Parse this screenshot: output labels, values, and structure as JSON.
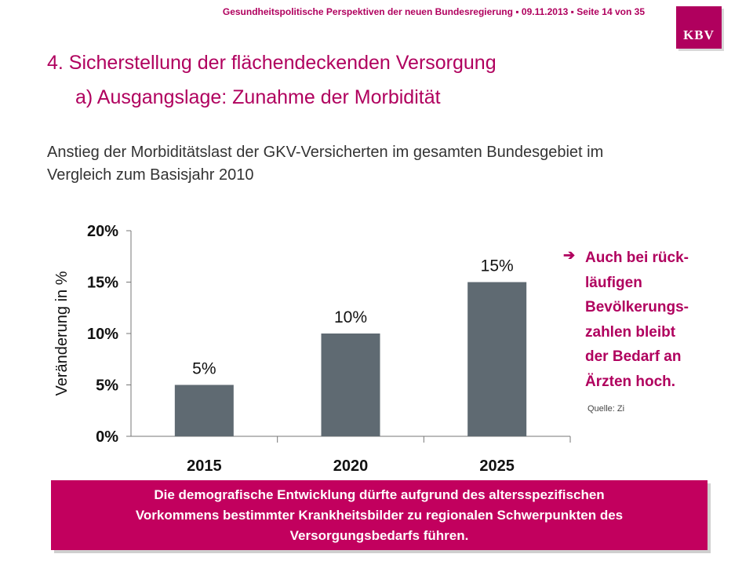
{
  "header": {
    "presentation_title": "Gesundheitspolitische  Perspektiven  der neuen Bundesregierung",
    "date": "09.11.2013",
    "page": "Seite 14 von 35",
    "separator": "▪"
  },
  "logo": {
    "text": "KBV"
  },
  "slide": {
    "title": "4. Sicherstellung der flächendeckenden  Versorgung",
    "subheading": "a) Ausgangslage:  Zunahme der Morbidität",
    "chart_caption": "Anstieg der Morbiditätslast der GKV-Versicherten im gesamten Bundesgebiet im Vergleich zum Basisjahr 2010"
  },
  "chart_data": {
    "type": "bar",
    "categories": [
      "2015",
      "2020",
      "2025"
    ],
    "values": [
      5,
      10,
      15
    ],
    "data_labels": [
      "5%",
      "10%",
      "15%"
    ],
    "ylabel": "Veränderung in %",
    "ylim": [
      0,
      20
    ],
    "yticks": [
      0,
      5,
      10,
      15,
      20
    ],
    "ytick_labels": [
      "0%",
      "5%",
      "10%",
      "15%",
      "20%"
    ],
    "bar_color": "#5f6a72",
    "grid": false
  },
  "bullet": {
    "icon": "arrow-right-icon",
    "text": "Auch bei rück-\nläufigen\nBevölkerungs-\nzahlen bleibt\nder Bedarf an\nÄrzten hoch."
  },
  "source": "Quelle: Zi",
  "banner": {
    "text": "Die demografische Entwicklung dürfte aufgrund des altersspezifischen\nVorkommens bestimmter Krankheitsbilder zu regionalen Schwerpunkten des\nVersorgungsbedarfs führen."
  },
  "colors": {
    "accent": "#b0005e",
    "banner": "#c2005e",
    "bar": "#5f6a72"
  }
}
